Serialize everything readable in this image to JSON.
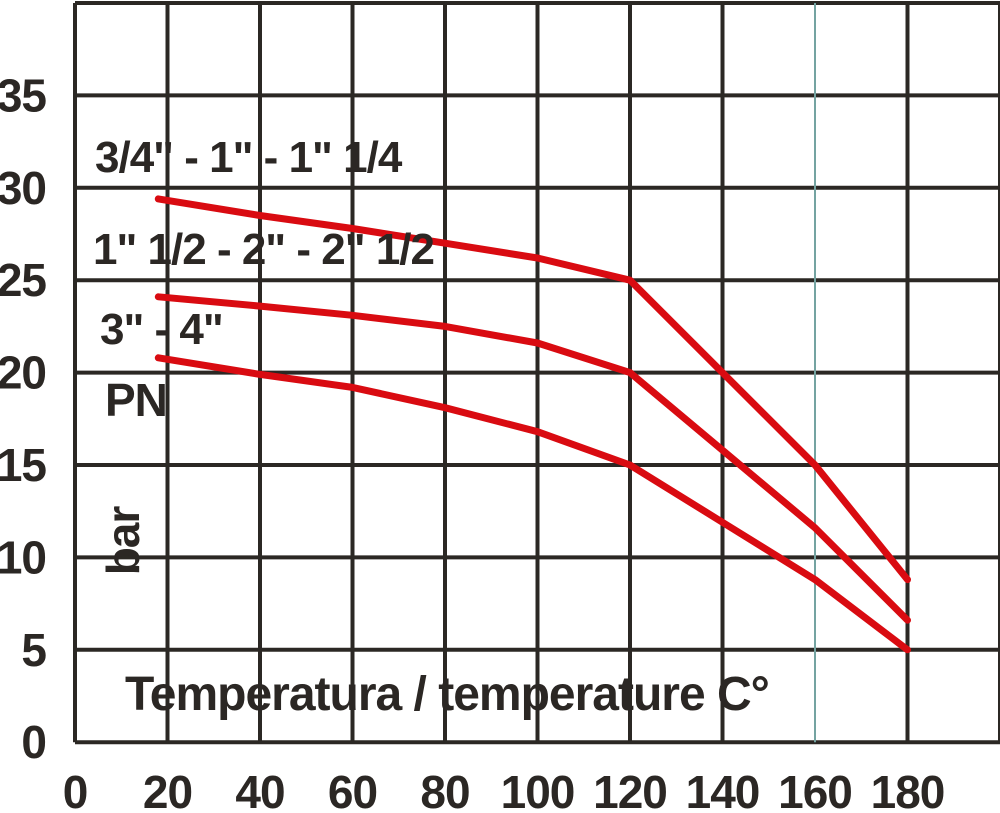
{
  "chart_data": {
    "type": "line",
    "title": "",
    "xlabel": "Temperatura / temperature C°",
    "ylabel": "PN",
    "y_unit": "bar",
    "xlim": [
      0,
      200
    ],
    "ylim": [
      0,
      40
    ],
    "x_ticks": [
      0,
      20,
      40,
      60,
      80,
      100,
      120,
      140,
      160,
      180
    ],
    "y_ticks": [
      0,
      5,
      10,
      15,
      20,
      25,
      30,
      35
    ],
    "x_gridline_step": 20,
    "y_gridline_step": 5,
    "grid": true,
    "legend_position": "labels-inside-top-left",
    "series": [
      {
        "name": "3/4\" - 1\" - 1\" 1/4",
        "points": [
          [
            18,
            29.4
          ],
          [
            40,
            28.5
          ],
          [
            60,
            27.8
          ],
          [
            80,
            27.0
          ],
          [
            100,
            26.2
          ],
          [
            120,
            25.0
          ],
          [
            140,
            20.0
          ],
          [
            160,
            15.0
          ],
          [
            180,
            8.8
          ]
        ]
      },
      {
        "name": "1\" 1/2 - 2\" - 2\" 1/2",
        "points": [
          [
            18,
            24.1
          ],
          [
            40,
            23.6
          ],
          [
            60,
            23.1
          ],
          [
            80,
            22.5
          ],
          [
            100,
            21.6
          ],
          [
            120,
            20.0
          ],
          [
            140,
            15.8
          ],
          [
            160,
            11.6
          ],
          [
            180,
            6.6
          ]
        ]
      },
      {
        "name": "3\" - 4\"",
        "points": [
          [
            18,
            20.8
          ],
          [
            40,
            19.9
          ],
          [
            60,
            19.2
          ],
          [
            80,
            18.1
          ],
          [
            100,
            16.8
          ],
          [
            120,
            15.0
          ],
          [
            140,
            11.9
          ],
          [
            160,
            8.8
          ],
          [
            180,
            5.0
          ]
        ]
      }
    ],
    "colors": {
      "background": "#ffffff",
      "grid": "#2b2824",
      "text": "#2b2724",
      "curve": "#d90b11",
      "accent_gridline": "#74a3a1"
    },
    "accent_gridline_x": 160
  }
}
